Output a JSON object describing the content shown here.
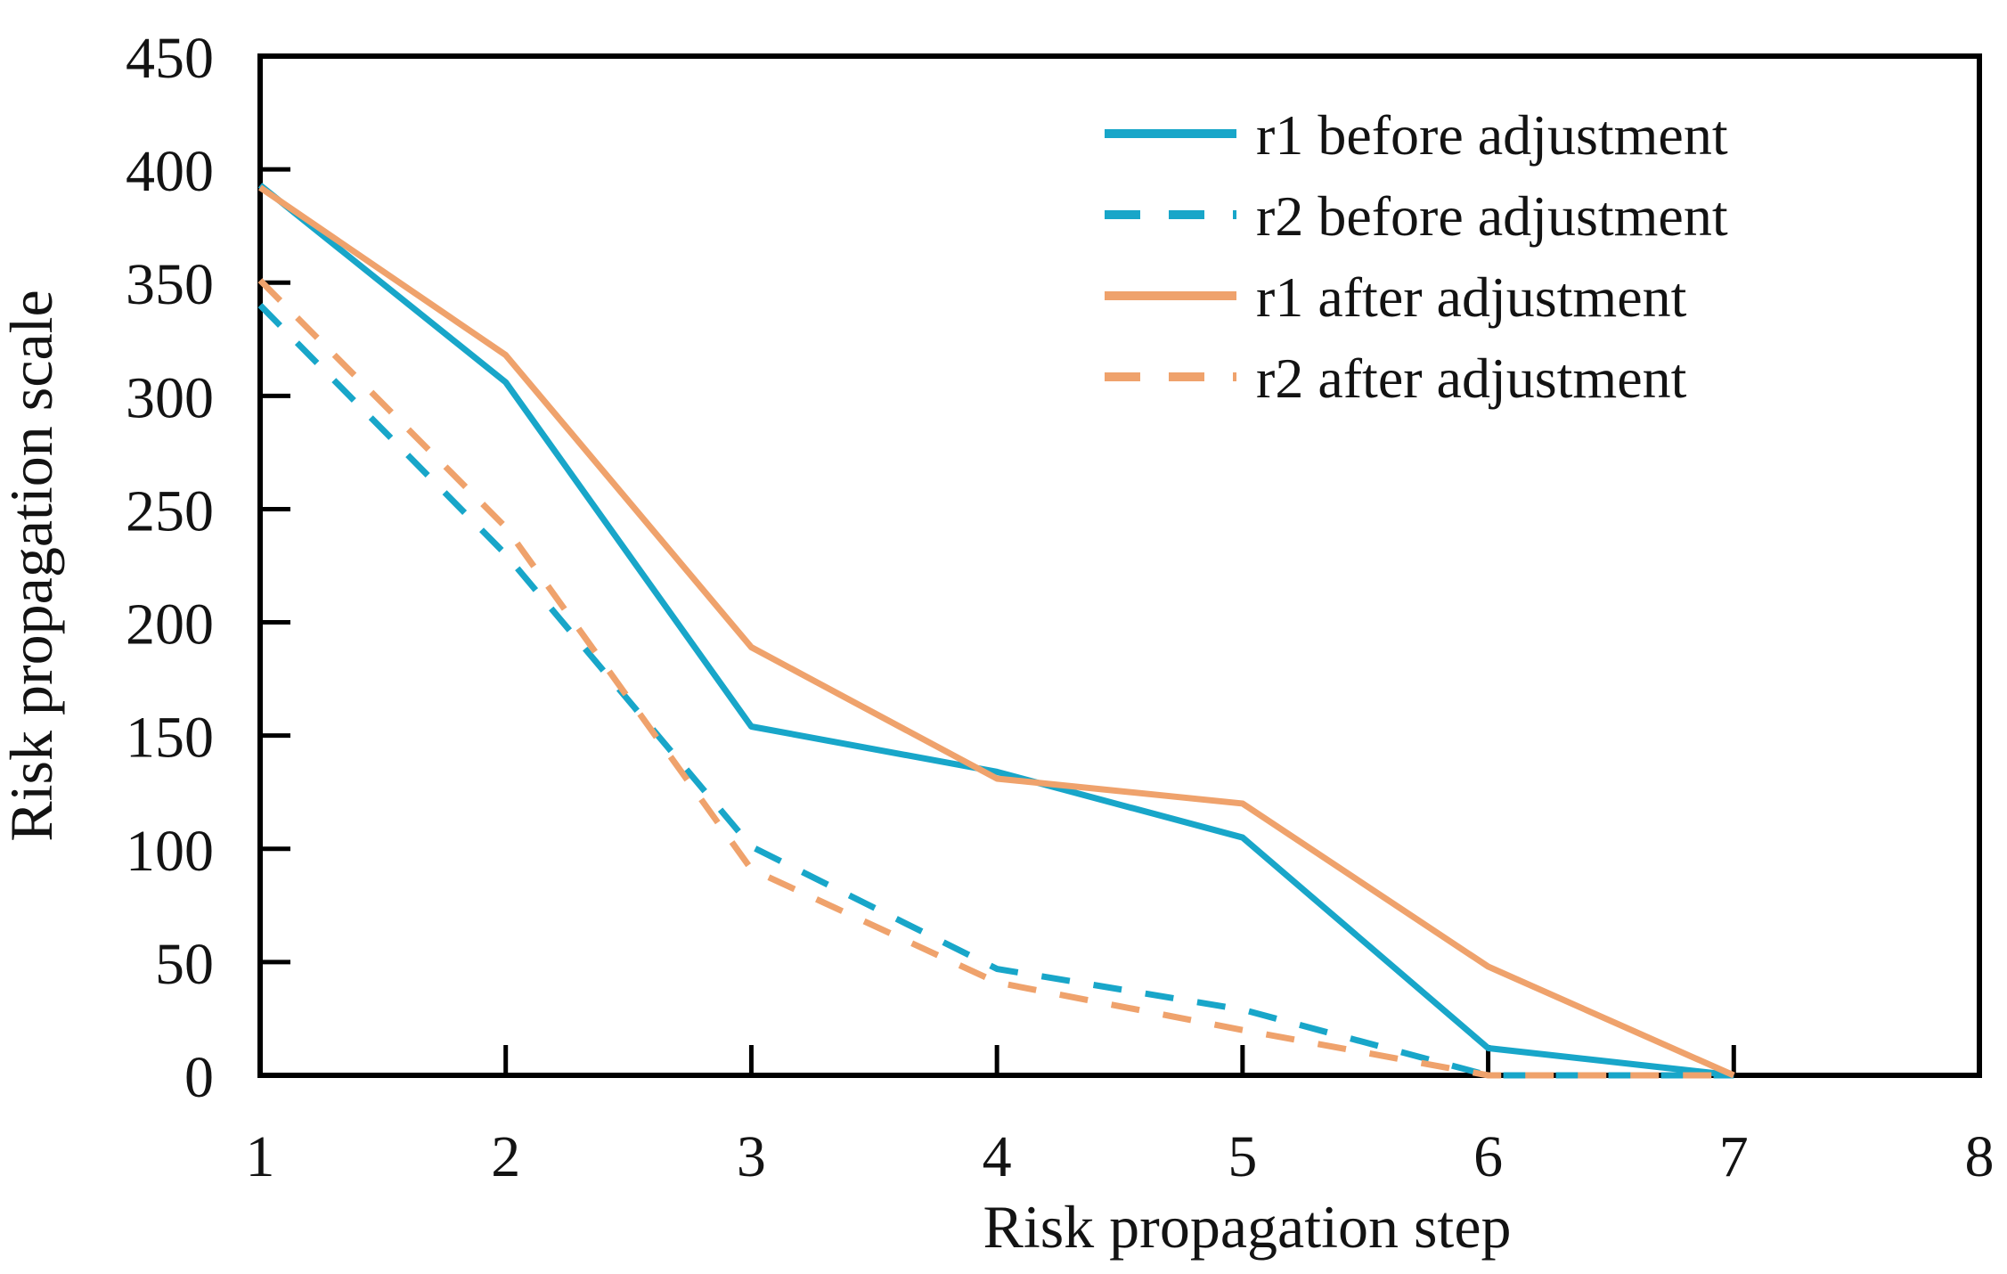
{
  "chart_data": {
    "type": "line",
    "title": "",
    "xlabel": "Risk propagation step",
    "ylabel": "Risk propagation scale",
    "xlim": [
      1,
      8
    ],
    "ylim": [
      0,
      450
    ],
    "x_ticks": [
      1,
      2,
      3,
      4,
      5,
      6,
      7,
      8
    ],
    "y_ticks": [
      0,
      50,
      100,
      150,
      200,
      250,
      300,
      350,
      400,
      450
    ],
    "grid": false,
    "legend_position": "top-right-inside",
    "x": [
      1,
      2,
      3,
      4,
      5,
      6,
      7
    ],
    "series": [
      {
        "name": "r1 before adjustment",
        "style": "solid",
        "color": "#18a6c9",
        "values": [
          393,
          306,
          154,
          134,
          105,
          12,
          0
        ]
      },
      {
        "name": "r2 before adjustment",
        "style": "dashed",
        "color": "#18a6c9",
        "values": [
          340,
          230,
          101,
          47,
          29,
          0,
          0
        ]
      },
      {
        "name": "r1 after adjustment",
        "style": "solid",
        "color": "#efa26c",
        "values": [
          392,
          318,
          189,
          131,
          120,
          48,
          0
        ]
      },
      {
        "name": "r2 after adjustment",
        "style": "dashed",
        "color": "#efa26c",
        "values": [
          351,
          242,
          91,
          41,
          20,
          0,
          0
        ]
      }
    ],
    "colors": {
      "axis": "#000000",
      "text": "#131313",
      "background": "#ffffff"
    }
  }
}
